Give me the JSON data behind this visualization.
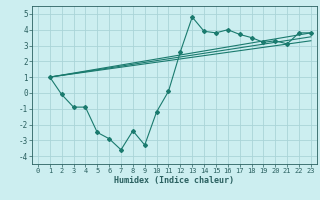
{
  "xlabel": "Humidex (Indice chaleur)",
  "bg_color": "#cceef0",
  "grid_color": "#aad4d8",
  "line_color": "#1a7a6e",
  "xlim": [
    -0.5,
    23.5
  ],
  "ylim": [
    -4.5,
    5.5
  ],
  "xticks": [
    0,
    1,
    2,
    3,
    4,
    5,
    6,
    7,
    8,
    9,
    10,
    11,
    12,
    13,
    14,
    15,
    16,
    17,
    18,
    19,
    20,
    21,
    22,
    23
  ],
  "yticks": [
    -4,
    -3,
    -2,
    -1,
    0,
    1,
    2,
    3,
    4,
    5
  ],
  "main_x": [
    1,
    2,
    3,
    4,
    5,
    6,
    7,
    8,
    9,
    10,
    11,
    12,
    13,
    14,
    15,
    16,
    17,
    18,
    19,
    20,
    21,
    22,
    23
  ],
  "main_y": [
    1.0,
    -0.1,
    -0.9,
    -0.9,
    -2.5,
    -2.9,
    -3.6,
    -2.4,
    -3.3,
    -1.2,
    0.1,
    2.6,
    4.8,
    3.9,
    3.8,
    4.0,
    3.7,
    3.5,
    3.2,
    3.3,
    3.1,
    3.8,
    3.8
  ],
  "reg_lines": [
    {
      "x": [
        1,
        23
      ],
      "y": [
        1.0,
        3.8
      ]
    },
    {
      "x": [
        1,
        23
      ],
      "y": [
        1.0,
        3.55
      ]
    },
    {
      "x": [
        1,
        23
      ],
      "y": [
        1.0,
        3.3
      ]
    }
  ]
}
